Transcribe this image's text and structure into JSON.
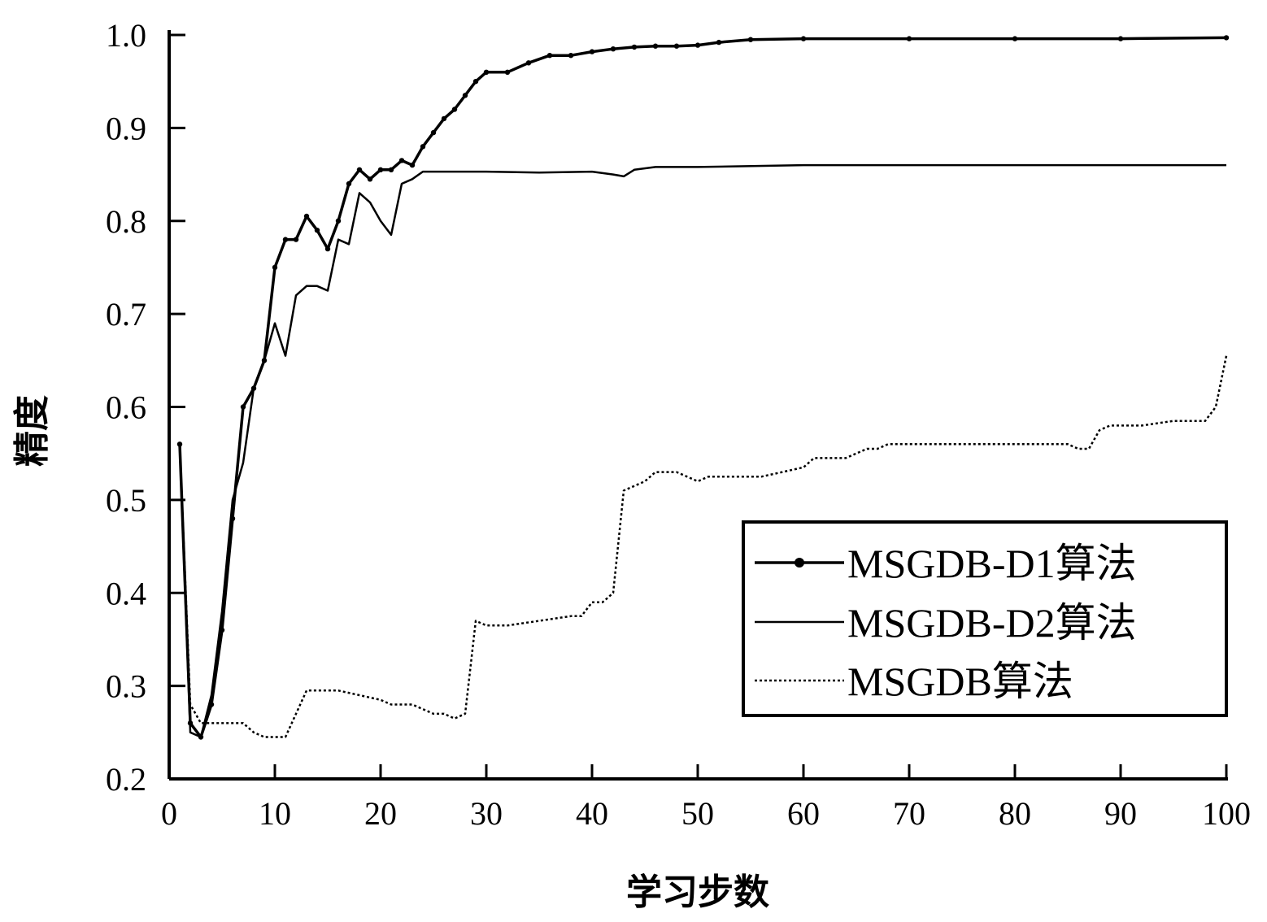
{
  "chart_data": {
    "type": "line",
    "title": "",
    "xlabel": "学习步数",
    "ylabel": "精度",
    "xlim": [
      0,
      100
    ],
    "ylim": [
      0.2,
      1.0
    ],
    "xticks": [
      "0",
      "10",
      "20",
      "30",
      "40",
      "50",
      "60",
      "70",
      "80",
      "90",
      "100"
    ],
    "yticks": [
      "0.2",
      "0.3",
      "0.4",
      "0.5",
      "0.6",
      "0.7",
      "0.8",
      "0.9",
      "1.0"
    ],
    "grid": false,
    "legend_position": "lower-right",
    "series": [
      {
        "name": "MSGDB-D1算法",
        "style": "solid-marker",
        "color": "#000000",
        "x": [
          1,
          2,
          3,
          4,
          5,
          6,
          7,
          8,
          9,
          10,
          11,
          12,
          13,
          14,
          15,
          16,
          17,
          18,
          19,
          20,
          21,
          22,
          23,
          24,
          25,
          26,
          27,
          28,
          29,
          30,
          32,
          34,
          36,
          38,
          40,
          42,
          44,
          46,
          48,
          50,
          52,
          55,
          60,
          70,
          80,
          90,
          100
        ],
        "y": [
          0.56,
          0.26,
          0.245,
          0.28,
          0.36,
          0.48,
          0.6,
          0.62,
          0.65,
          0.75,
          0.78,
          0.78,
          0.805,
          0.79,
          0.77,
          0.8,
          0.84,
          0.855,
          0.845,
          0.855,
          0.855,
          0.865,
          0.86,
          0.88,
          0.895,
          0.91,
          0.92,
          0.935,
          0.95,
          0.96,
          0.96,
          0.97,
          0.978,
          0.978,
          0.982,
          0.985,
          0.987,
          0.988,
          0.988,
          0.989,
          0.992,
          0.995,
          0.996,
          0.996,
          0.996,
          0.996,
          0.997
        ]
      },
      {
        "name": "MSGDB-D2算法",
        "style": "solid",
        "color": "#000000",
        "x": [
          1,
          2,
          3,
          4,
          5,
          6,
          7,
          8,
          9,
          10,
          11,
          12,
          13,
          14,
          15,
          16,
          17,
          18,
          19,
          20,
          21,
          22,
          23,
          24,
          25,
          30,
          35,
          40,
          42,
          43,
          44,
          46,
          50,
          60,
          70,
          80,
          90,
          100
        ],
        "y": [
          0.56,
          0.25,
          0.245,
          0.29,
          0.38,
          0.5,
          0.54,
          0.62,
          0.65,
          0.69,
          0.655,
          0.72,
          0.73,
          0.73,
          0.725,
          0.78,
          0.775,
          0.83,
          0.82,
          0.8,
          0.785,
          0.84,
          0.845,
          0.853,
          0.853,
          0.853,
          0.852,
          0.853,
          0.85,
          0.848,
          0.855,
          0.858,
          0.858,
          0.86,
          0.86,
          0.86,
          0.86,
          0.86
        ]
      },
      {
        "name": "MSGDB算法",
        "style": "dotted",
        "color": "#000000",
        "x": [
          1,
          2,
          3,
          4,
          5,
          6,
          7,
          8,
          9,
          10,
          11,
          12,
          13,
          14,
          15,
          16,
          20,
          21,
          22,
          23,
          24,
          25,
          26,
          27,
          28,
          29,
          30,
          31,
          32,
          35,
          38,
          39,
          40,
          41,
          42,
          43,
          44,
          45,
          46,
          48,
          49,
          50,
          51,
          52,
          54,
          56,
          58,
          60,
          61,
          62,
          64,
          66,
          67,
          68,
          70,
          75,
          80,
          85,
          86,
          87,
          88,
          89,
          90,
          92,
          95,
          96,
          97,
          98,
          99,
          100
        ],
        "y": [
          0.56,
          0.28,
          0.26,
          0.26,
          0.26,
          0.26,
          0.26,
          0.25,
          0.245,
          0.245,
          0.245,
          0.27,
          0.295,
          0.295,
          0.295,
          0.295,
          0.285,
          0.28,
          0.28,
          0.28,
          0.275,
          0.27,
          0.27,
          0.265,
          0.27,
          0.37,
          0.365,
          0.365,
          0.365,
          0.37,
          0.375,
          0.375,
          0.39,
          0.39,
          0.4,
          0.51,
          0.515,
          0.52,
          0.53,
          0.53,
          0.525,
          0.52,
          0.525,
          0.525,
          0.525,
          0.525,
          0.53,
          0.535,
          0.545,
          0.545,
          0.545,
          0.555,
          0.555,
          0.56,
          0.56,
          0.56,
          0.56,
          0.56,
          0.555,
          0.555,
          0.575,
          0.58,
          0.58,
          0.58,
          0.585,
          0.585,
          0.585,
          0.585,
          0.6,
          0.655
        ]
      }
    ]
  }
}
